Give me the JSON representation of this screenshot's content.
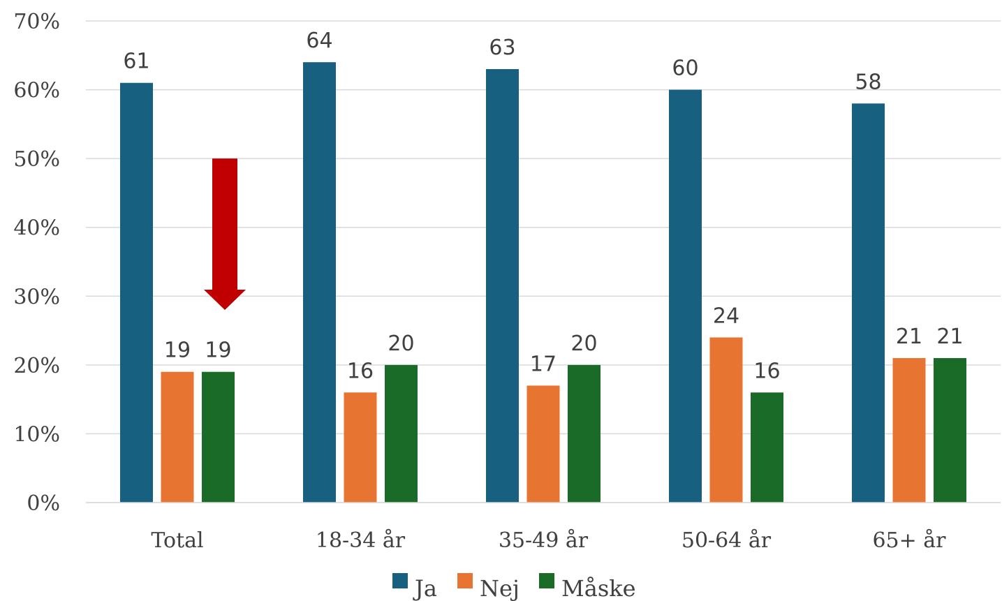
{
  "chart_data": {
    "type": "bar",
    "categories": [
      "Total",
      "18-34 år",
      "35-49 år",
      "50-64 år",
      "65+ år"
    ],
    "series": [
      {
        "name": "Ja",
        "color": "#17607f",
        "values": [
          61,
          64,
          63,
          60,
          58
        ]
      },
      {
        "name": "Nej",
        "color": "#e87432",
        "values": [
          19,
          16,
          17,
          24,
          21
        ]
      },
      {
        "name": "Måske",
        "color": "#1a6b27",
        "values": [
          19,
          20,
          20,
          16,
          21
        ]
      }
    ],
    "ylim": [
      0,
      70
    ],
    "yticks": [
      "0%",
      "10%",
      "20%",
      "30%",
      "40%",
      "50%",
      "60%",
      "70%"
    ],
    "ytick_values": [
      0,
      10,
      20,
      30,
      40,
      50,
      60,
      70
    ],
    "grid": true,
    "legend_position": "bottom",
    "annotation": {
      "shape": "down-arrow",
      "color": "#c00000",
      "category": "Total",
      "from_value": 50,
      "to_value": 28
    }
  }
}
